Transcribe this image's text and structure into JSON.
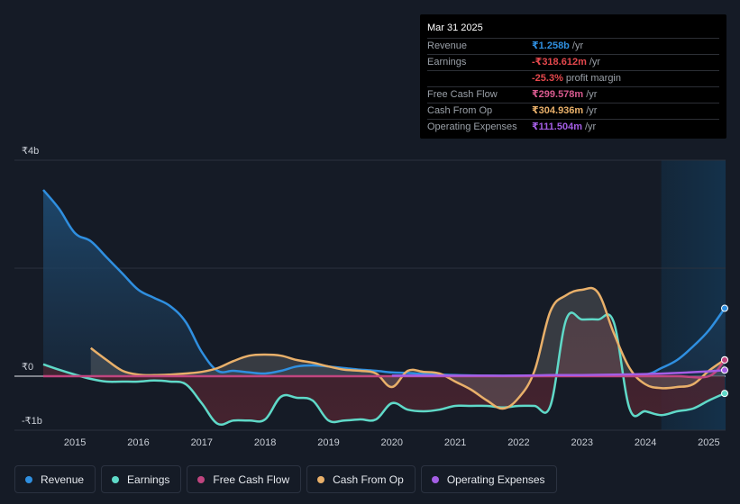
{
  "tooltip": {
    "date": "Mar 31 2025",
    "rows": [
      {
        "label": "Revenue",
        "value": "₹1.258b",
        "unit": "/yr",
        "color": "#2f8fe0"
      },
      {
        "label": "Earnings",
        "value": "-₹318.612m",
        "unit": "/yr",
        "color": "#e5484d"
      },
      {
        "label": "",
        "value": "-25.3%",
        "unit": "profit margin",
        "color": "#e5484d"
      },
      {
        "label": "Free Cash Flow",
        "value": "₹299.578m",
        "unit": "/yr",
        "color": "#d85a8f"
      },
      {
        "label": "Cash From Op",
        "value": "₹304.936m",
        "unit": "/yr",
        "color": "#e9b06a"
      },
      {
        "label": "Operating Expenses",
        "value": "₹111.504m",
        "unit": "/yr",
        "color": "#a45ee5"
      }
    ]
  },
  "legend": [
    {
      "label": "Revenue",
      "color": "#2f8fe0"
    },
    {
      "label": "Earnings",
      "color": "#5fd9c8"
    },
    {
      "label": "Free Cash Flow",
      "color": "#c0457f"
    },
    {
      "label": "Cash From Op",
      "color": "#e9b06a"
    },
    {
      "label": "Operating Expenses",
      "color": "#a45ee5"
    }
  ],
  "chart_data": {
    "type": "area",
    "y_tick_labels": [
      "₹4b",
      "₹0",
      "-₹1b"
    ],
    "x_tick_labels": [
      "2015",
      "2016",
      "2017",
      "2018",
      "2019",
      "2020",
      "2021",
      "2022",
      "2023",
      "2024",
      "2025"
    ],
    "ylim": [
      -1,
      4
    ],
    "xlim": [
      2014.5,
      2025.25
    ],
    "highlight_from": 2024.25,
    "series": [
      {
        "name": "Revenue",
        "color": "#2f8fe0",
        "x": [
          2014.5,
          2014.75,
          2015.0,
          2015.25,
          2015.5,
          2015.75,
          2016.0,
          2016.25,
          2016.5,
          2016.75,
          2017.0,
          2017.25,
          2017.5,
          2017.75,
          2018.0,
          2018.25,
          2018.5,
          2018.75,
          2019.0,
          2019.25,
          2019.5,
          2019.75,
          2020.0,
          2020.25,
          2020.5,
          2020.75,
          2021.0,
          2021.5,
          2022.0,
          2022.5,
          2023.0,
          2023.5,
          2024.0,
          2024.25,
          2024.5,
          2024.75,
          2025.0,
          2025.25
        ],
        "values": [
          3.45,
          3.1,
          2.65,
          2.5,
          2.2,
          1.9,
          1.6,
          1.45,
          1.3,
          1.0,
          0.45,
          0.1,
          0.1,
          0.07,
          0.05,
          0.1,
          0.18,
          0.2,
          0.18,
          0.15,
          0.12,
          0.1,
          0.07,
          0.06,
          0.04,
          0.03,
          0.02,
          0.01,
          0.01,
          0.01,
          0.01,
          0.01,
          0.03,
          0.15,
          0.3,
          0.55,
          0.85,
          1.258
        ]
      },
      {
        "name": "Earnings",
        "color": "#5fd9c8",
        "x": [
          2014.5,
          2014.75,
          2015.0,
          2015.25,
          2015.5,
          2015.75,
          2016.0,
          2016.25,
          2016.5,
          2016.75,
          2017.0,
          2017.25,
          2017.5,
          2017.75,
          2018.0,
          2018.25,
          2018.5,
          2018.75,
          2019.0,
          2019.25,
          2019.5,
          2019.75,
          2020.0,
          2020.25,
          2020.5,
          2020.75,
          2021.0,
          2021.25,
          2021.5,
          2021.75,
          2022.0,
          2022.25,
          2022.5,
          2022.75,
          2023.0,
          2023.25,
          2023.5,
          2023.75,
          2024.0,
          2024.25,
          2024.5,
          2024.75,
          2025.0,
          2025.25
        ],
        "values": [
          0.22,
          0.12,
          0.03,
          -0.05,
          -0.1,
          -0.1,
          -0.1,
          -0.08,
          -0.1,
          -0.15,
          -0.5,
          -0.88,
          -0.82,
          -0.82,
          -0.8,
          -0.38,
          -0.4,
          -0.45,
          -0.82,
          -0.82,
          -0.8,
          -0.8,
          -0.5,
          -0.62,
          -0.65,
          -0.62,
          -0.55,
          -0.55,
          -0.55,
          -0.58,
          -0.55,
          -0.55,
          -0.55,
          1.05,
          1.05,
          1.05,
          1.0,
          -0.6,
          -0.65,
          -0.72,
          -0.65,
          -0.6,
          -0.45,
          -0.3186
        ]
      },
      {
        "name": "Cash From Op",
        "color": "#e9b06a",
        "x": [
          2015.25,
          2015.5,
          2015.75,
          2016.0,
          2016.25,
          2016.5,
          2016.75,
          2017.0,
          2017.25,
          2017.5,
          2017.75,
          2018.0,
          2018.25,
          2018.5,
          2018.75,
          2019.0,
          2019.25,
          2019.5,
          2019.75,
          2020.0,
          2020.25,
          2020.5,
          2020.75,
          2021.0,
          2021.25,
          2021.5,
          2021.75,
          2022.0,
          2022.25,
          2022.5,
          2022.75,
          2023.0,
          2023.25,
          2023.5,
          2023.75,
          2024.0,
          2024.25,
          2024.5,
          2024.75,
          2025.0,
          2025.25
        ],
        "values": [
          0.52,
          0.3,
          0.1,
          0.03,
          0.02,
          0.03,
          0.05,
          0.08,
          0.15,
          0.28,
          0.38,
          0.4,
          0.38,
          0.3,
          0.25,
          0.18,
          0.12,
          0.1,
          0.05,
          -0.2,
          0.1,
          0.08,
          0.05,
          -0.1,
          -0.25,
          -0.45,
          -0.6,
          -0.4,
          0.1,
          1.2,
          1.5,
          1.6,
          1.55,
          0.8,
          0.15,
          -0.15,
          -0.22,
          -0.2,
          -0.15,
          0.1,
          0.305
        ]
      },
      {
        "name": "Free Cash Flow",
        "color": "#c0457f",
        "x": [
          2014.5,
          2015.0,
          2016.0,
          2017.0,
          2018.0,
          2019.0,
          2019.25,
          2020.0,
          2021.0,
          2022.0,
          2023.0,
          2024.0,
          2024.5,
          2025.0,
          2025.25
        ],
        "values": [
          0.0,
          0.0,
          0.0,
          0.0,
          0.0,
          0.0,
          0.0,
          0.0,
          0.0,
          0.0,
          0.0,
          0.0,
          0.0,
          0.0,
          0.2996
        ]
      },
      {
        "name": "Operating Expenses",
        "color": "#a45ee5",
        "x": [
          2020.0,
          2020.5,
          2021.0,
          2021.5,
          2022.0,
          2022.5,
          2023.0,
          2023.5,
          2024.0,
          2024.5,
          2025.0,
          2025.25
        ],
        "values": [
          0.01,
          0.01,
          0.01,
          0.01,
          0.01,
          0.02,
          0.02,
          0.03,
          0.04,
          0.06,
          0.09,
          0.1115
        ]
      }
    ]
  }
}
